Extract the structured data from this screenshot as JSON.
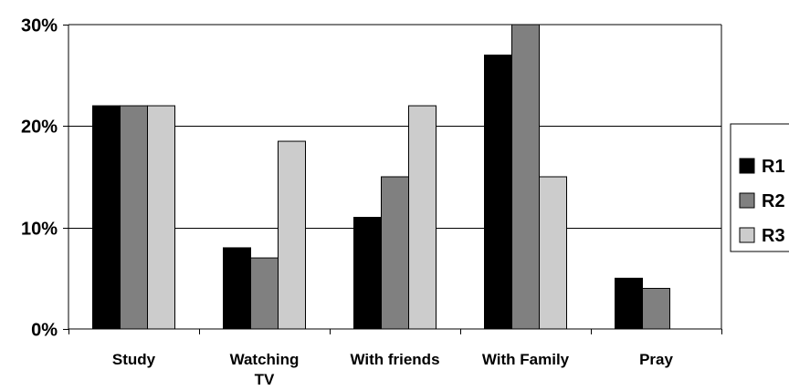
{
  "chart_data": {
    "type": "bar",
    "categories": [
      "Study",
      "Watching TV",
      "With friends",
      "With Family",
      "Pray"
    ],
    "category_lines": [
      [
        "Study"
      ],
      [
        "Watching",
        "TV"
      ],
      [
        "With friends"
      ],
      [
        "With Family"
      ],
      [
        "Pray"
      ]
    ],
    "series": [
      {
        "name": "R1",
        "color": "#000000",
        "values": [
          22,
          8,
          11,
          27,
          5
        ]
      },
      {
        "name": "R2",
        "color": "#808080",
        "values": [
          22,
          7,
          15,
          30,
          4
        ]
      },
      {
        "name": "R3",
        "color": "#cccccc",
        "values": [
          22,
          18.5,
          22,
          15,
          0
        ]
      }
    ],
    "ylim": [
      0,
      30
    ],
    "yticks": [
      0,
      10,
      20,
      30
    ],
    "ytick_labels": [
      "0%",
      "10%",
      "20%",
      "30%"
    ],
    "grid": true,
    "legend": "right"
  }
}
